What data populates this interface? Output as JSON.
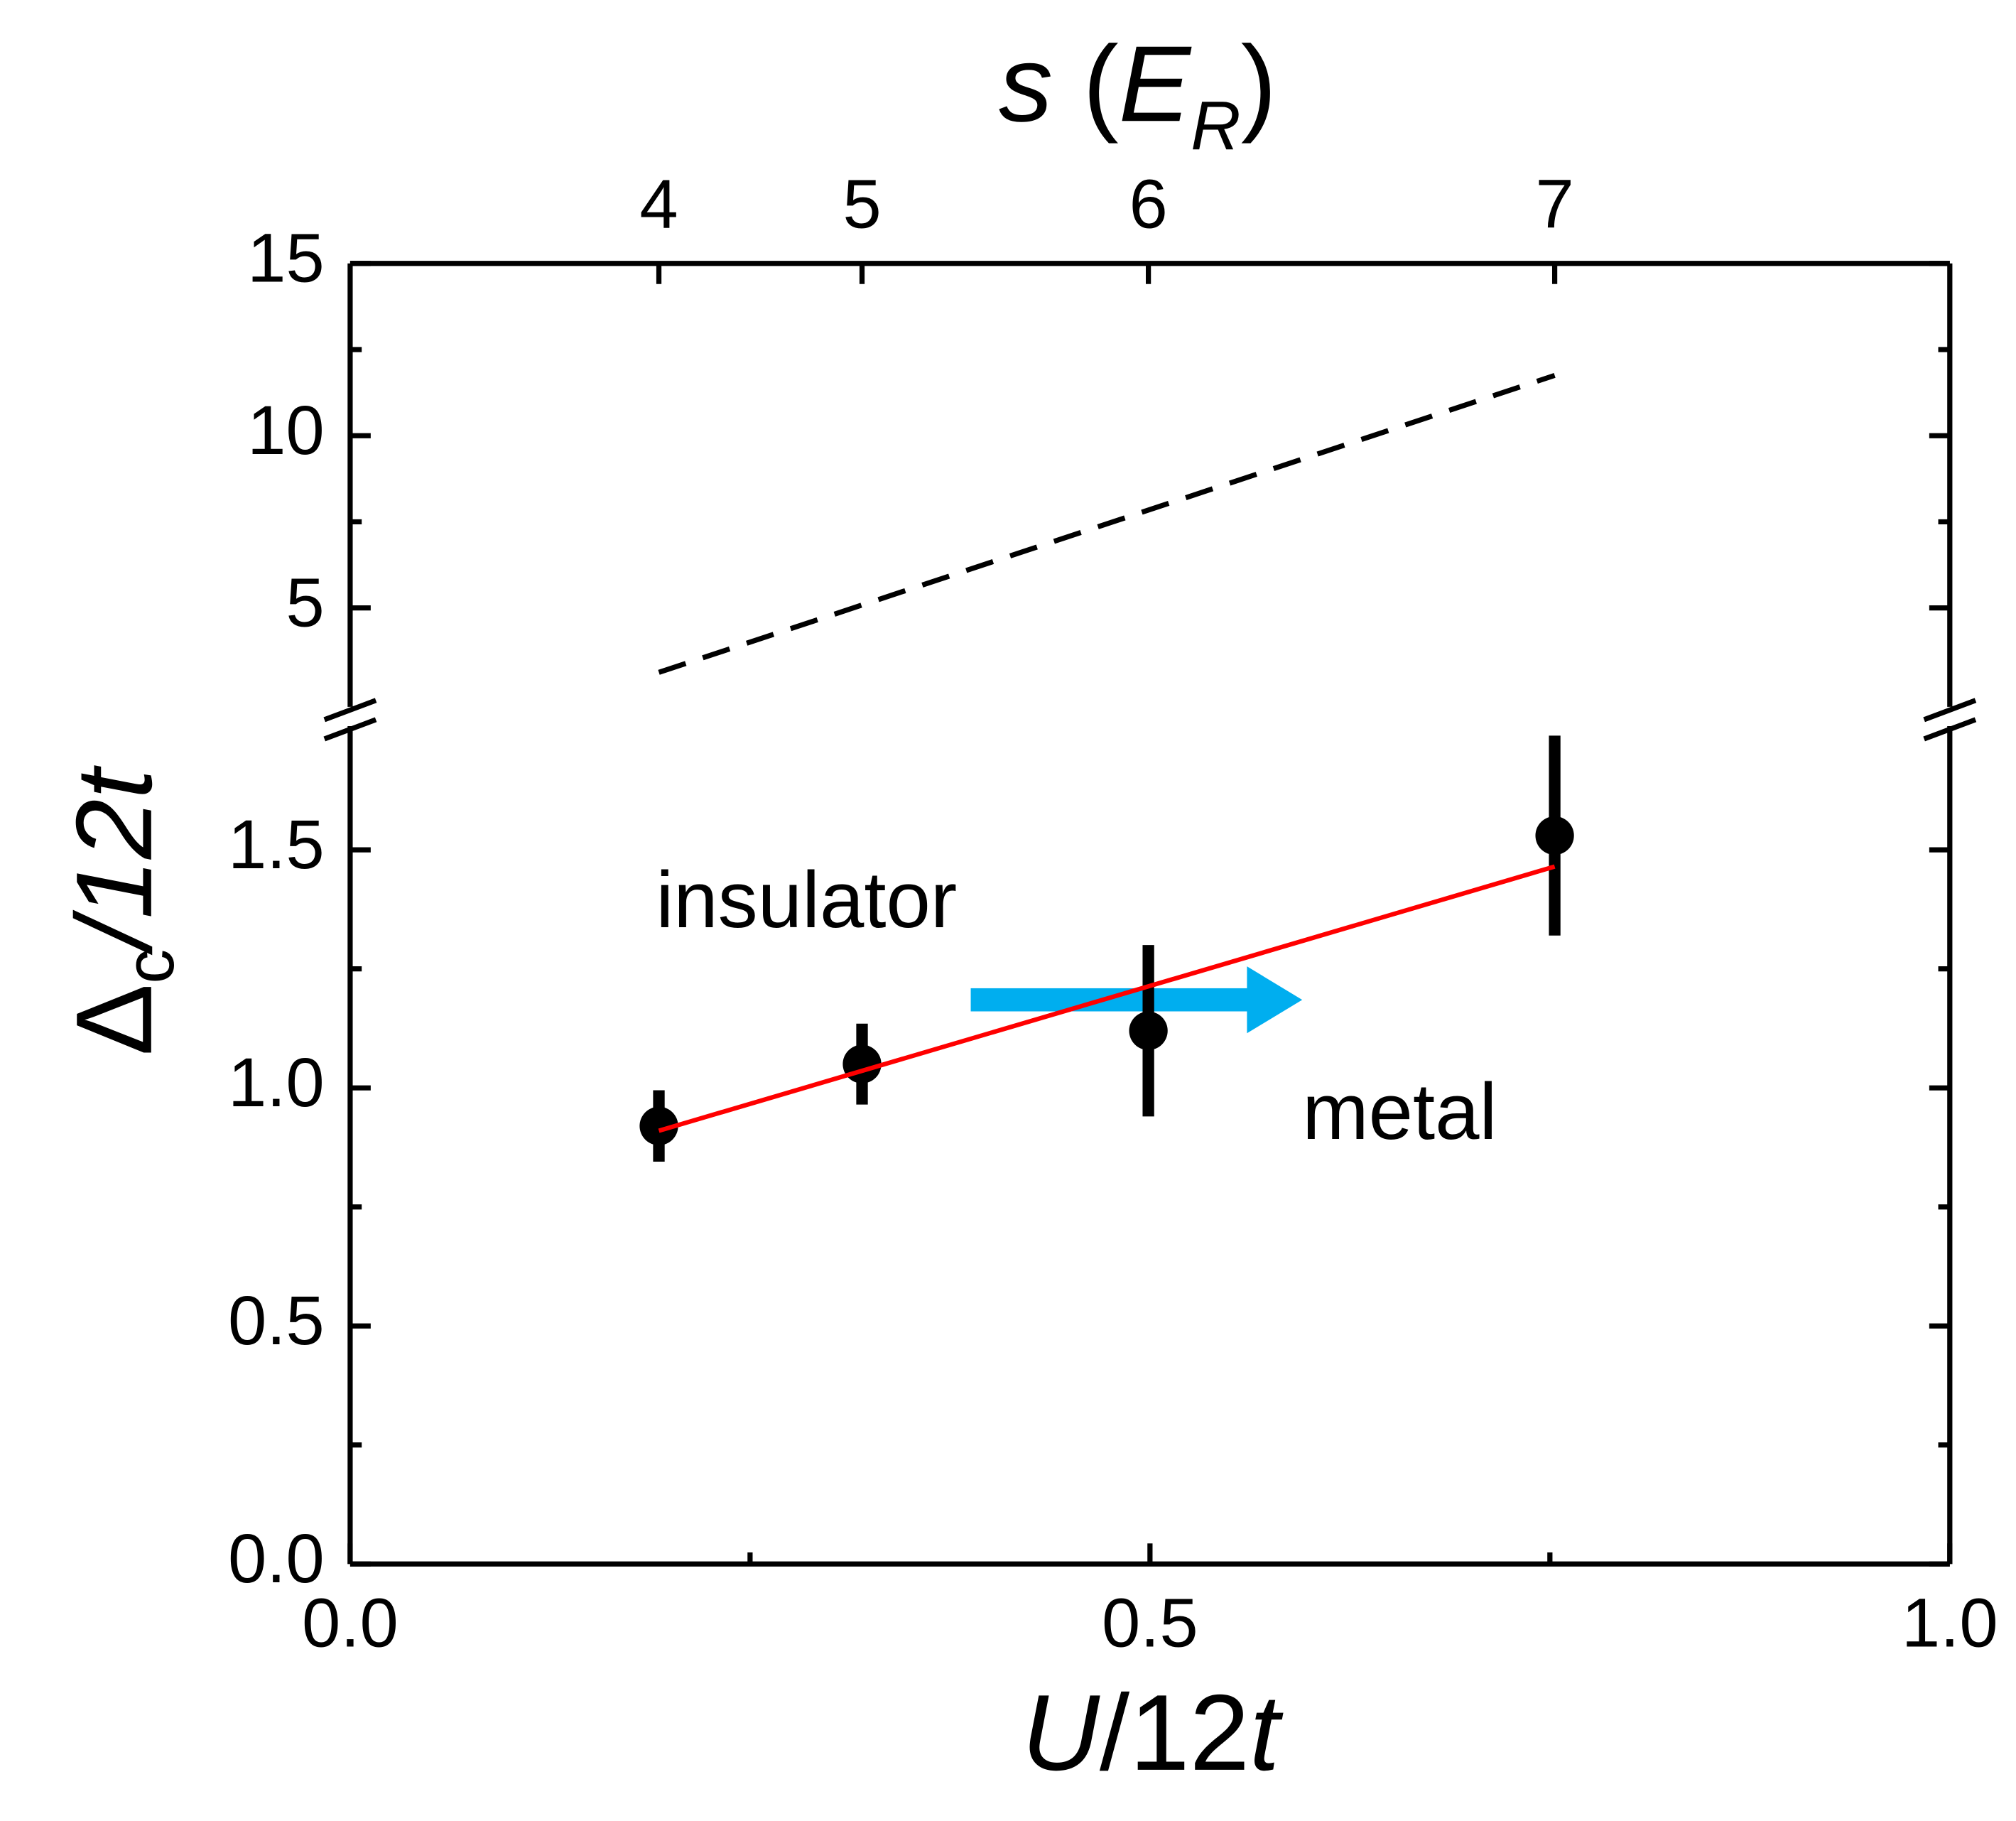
{
  "chart_data": [
    {
      "type": "line",
      "x2label": [
        "s",
        " (",
        "E",
        "R",
        ")"
      ],
      "xlim": [
        0,
        1
      ],
      "x2ticks": [
        {
          "value": 0.193,
          "label": "4"
        },
        {
          "value": 0.32,
          "label": "5"
        },
        {
          "value": 0.499,
          "label": "6"
        },
        {
          "value": 0.753,
          "label": "7"
        }
      ],
      "ylim": [
        2.13,
        15
      ],
      "yticks": [
        5,
        10,
        15
      ],
      "yminor": [
        7.5,
        12.5
      ],
      "series": [
        {
          "x": [
            0.193,
            0.753
          ],
          "values": [
            3.13,
            11.75
          ],
          "color": "#000000",
          "dashed": true
        }
      ]
    },
    {
      "type": "scatter",
      "xlabel": [
        "U",
        "/12",
        "t"
      ],
      "ylabel": [
        "Δ",
        "c",
        "/12",
        "t"
      ],
      "xlim": [
        0,
        1
      ],
      "xticks": [
        {
          "value": 0,
          "label": "0.0"
        },
        0.5,
        {
          "value": 1,
          "label": "1.0"
        }
      ],
      "xminor": [
        0.25,
        0.75
      ],
      "ylim": [
        0,
        1.76
      ],
      "yticks": [
        {
          "value": 0,
          "label": "0.0"
        },
        0.5,
        {
          "value": 1,
          "label": "1.0"
        },
        1.5
      ],
      "yminor": [
        0.25,
        0.75,
        1.25
      ],
      "series": [
        {
          "x": [
            0.193,
            0.32,
            0.499,
            0.753
          ],
          "values": [
            0.92,
            1.05,
            1.12,
            1.53
          ],
          "errors": [
            0.075,
            0.085,
            0.18,
            0.21
          ],
          "color": "#000000"
        },
        {
          "x": [
            0.193,
            0.753
          ],
          "values": [
            0.91,
            1.465
          ],
          "color": "#ff0000",
          "line": true
        }
      ],
      "annotations": [
        "insulator",
        "metal"
      ]
    }
  ]
}
